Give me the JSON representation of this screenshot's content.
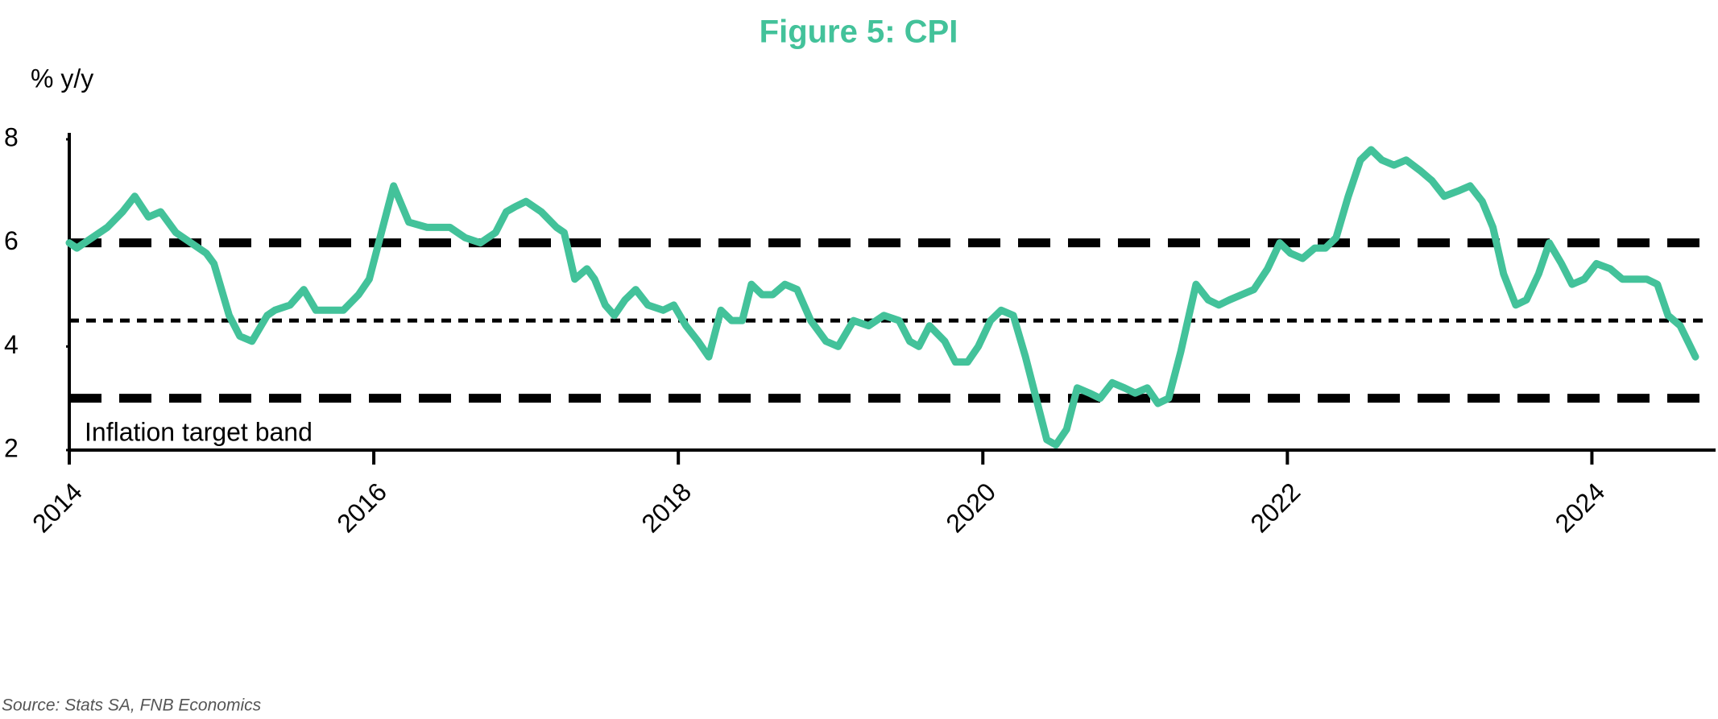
{
  "chart_data": {
    "type": "line",
    "title": "Figure 5: CPI",
    "y_label": "% y/y",
    "source": "Source: Stats SA, FNB Economics",
    "annotation": "Inflation target band",
    "x": [
      2014.0,
      2014.05,
      2014.15,
      2014.25,
      2014.35,
      2014.43,
      2014.52,
      2014.6,
      2014.7,
      2014.8,
      2014.9,
      2014.95,
      2015.05,
      2015.12,
      2015.2,
      2015.3,
      2015.35,
      2015.45,
      2015.54,
      2015.62,
      2015.7,
      2015.8,
      2015.9,
      2015.97,
      2016.05,
      2016.13,
      2016.23,
      2016.35,
      2016.5,
      2016.6,
      2016.7,
      2016.8,
      2016.87,
      2016.93,
      2017.0,
      2017.1,
      2017.2,
      2017.25,
      2017.32,
      2017.4,
      2017.45,
      2017.52,
      2017.58,
      2017.65,
      2017.72,
      2017.8,
      2017.9,
      2017.97,
      2018.05,
      2018.13,
      2018.2,
      2018.28,
      2018.35,
      2018.42,
      2018.48,
      2018.55,
      2018.62,
      2018.7,
      2018.78,
      2018.87,
      2018.97,
      2019.05,
      2019.15,
      2019.25,
      2019.35,
      2019.45,
      2019.52,
      2019.58,
      2019.65,
      2019.75,
      2019.82,
      2019.9,
      2019.97,
      2020.05,
      2020.12,
      2020.2,
      2020.28,
      2020.35,
      2020.42,
      2020.48,
      2020.55,
      2020.62,
      2020.7,
      2020.77,
      2020.85,
      2020.93,
      2021.0,
      2021.08,
      2021.15,
      2021.22,
      2021.3,
      2021.4,
      2021.48,
      2021.55,
      2021.62,
      2021.7,
      2021.78,
      2021.87,
      2021.95,
      2022.02,
      2022.1,
      2022.18,
      2022.25,
      2022.32,
      2022.4,
      2022.48,
      2022.55,
      2022.62,
      2022.7,
      2022.78,
      2022.87,
      2022.95,
      2023.03,
      2023.12,
      2023.2,
      2023.28,
      2023.35,
      2023.42,
      2023.5,
      2023.57,
      2023.65,
      2023.72,
      2023.8,
      2023.87,
      2023.95,
      2024.03,
      2024.12,
      2024.2,
      2024.28,
      2024.36,
      2024.43,
      2024.5,
      2024.58,
      2024.68
    ],
    "series": [
      {
        "name": "CPI",
        "color": "#43c29a",
        "values": [
          6.0,
          5.9,
          6.1,
          6.3,
          6.6,
          6.9,
          6.5,
          6.6,
          6.2,
          6.0,
          5.8,
          5.6,
          4.6,
          4.2,
          4.1,
          4.6,
          4.7,
          4.8,
          5.1,
          4.7,
          4.7,
          4.7,
          5.0,
          5.3,
          6.2,
          7.1,
          6.4,
          6.3,
          6.3,
          6.1,
          6.0,
          6.2,
          6.6,
          6.7,
          6.8,
          6.6,
          6.3,
          6.2,
          5.3,
          5.5,
          5.3,
          4.8,
          4.6,
          4.9,
          5.1,
          4.8,
          4.7,
          4.8,
          4.4,
          4.1,
          3.8,
          4.7,
          4.5,
          4.5,
          5.2,
          5.0,
          5.0,
          5.2,
          5.1,
          4.5,
          4.1,
          4.0,
          4.5,
          4.4,
          4.6,
          4.5,
          4.1,
          4.0,
          4.4,
          4.1,
          3.7,
          3.7,
          4.0,
          4.5,
          4.7,
          4.6,
          3.8,
          3.0,
          2.2,
          2.1,
          2.4,
          3.2,
          3.1,
          3.0,
          3.3,
          3.2,
          3.1,
          3.2,
          2.9,
          3.0,
          3.9,
          5.2,
          4.9,
          4.8,
          4.9,
          5.0,
          5.1,
          5.5,
          6.0,
          5.8,
          5.7,
          5.9,
          5.9,
          6.1,
          6.9,
          7.6,
          7.8,
          7.6,
          7.5,
          7.6,
          7.4,
          7.2,
          6.9,
          7.0,
          7.1,
          6.8,
          6.3,
          5.4,
          4.8,
          4.9,
          5.4,
          6.0,
          5.6,
          5.2,
          5.3,
          5.6,
          5.5,
          5.3,
          5.3,
          5.3,
          5.2,
          4.6,
          4.4,
          3.8
        ]
      }
    ],
    "reference_lines": [
      {
        "value": 6,
        "style": "dashed"
      },
      {
        "value": 4.5,
        "style": "dotted"
      },
      {
        "value": 3,
        "style": "dashed"
      }
    ],
    "xlim": [
      2014,
      2024.77
    ],
    "xticks": [
      2014,
      2016,
      2018,
      2020,
      2022,
      2024
    ],
    "ylim": [
      2,
      8
    ],
    "yticks": [
      2,
      4,
      6,
      8
    ]
  }
}
